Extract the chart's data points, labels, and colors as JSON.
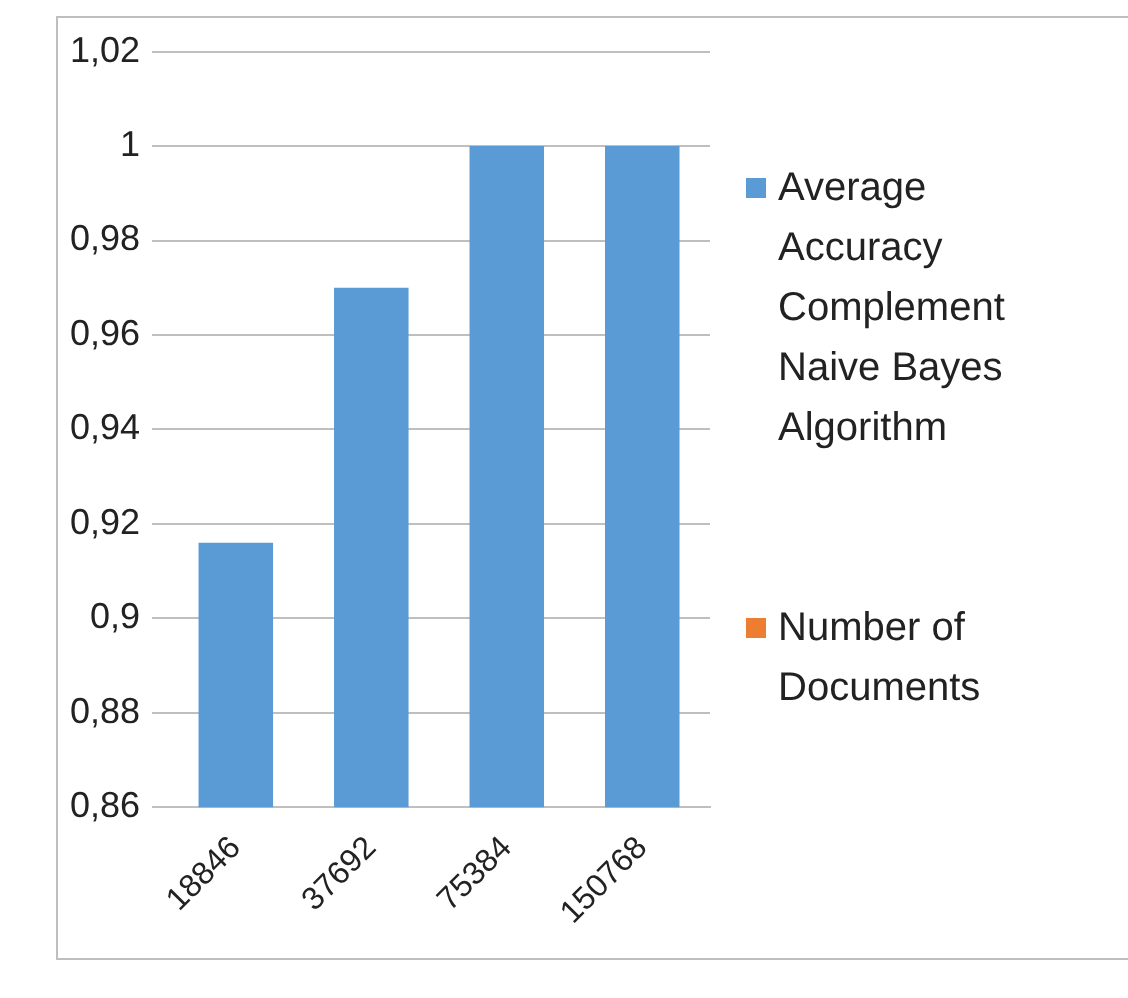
{
  "chart_data": {
    "type": "bar",
    "categories": [
      "18846",
      "37692",
      "75384",
      "150768"
    ],
    "series": [
      {
        "name": "Average Accuracy Complement Naive Bayes Algorithm",
        "color": "#5b9bd5",
        "values": [
          0.916,
          0.97,
          1,
          1
        ]
      },
      {
        "name": "Number of Documents",
        "color": "#ed7d31",
        "values": [
          null,
          null,
          null,
          null
        ]
      }
    ],
    "ylim": [
      0.86,
      1.02
    ],
    "yticks": [
      {
        "value": 0.86,
        "label": "0,86"
      },
      {
        "value": 0.88,
        "label": "0,88"
      },
      {
        "value": 0.9,
        "label": "0,9"
      },
      {
        "value": 0.92,
        "label": "0,92"
      },
      {
        "value": 0.94,
        "label": "0,94"
      },
      {
        "value": 0.96,
        "label": "0,96"
      },
      {
        "value": 0.98,
        "label": "0,98"
      },
      {
        "value": 1,
        "label": "1"
      },
      {
        "value": 1.02,
        "label": "1,02"
      }
    ],
    "grid": "y",
    "legend": "right"
  }
}
